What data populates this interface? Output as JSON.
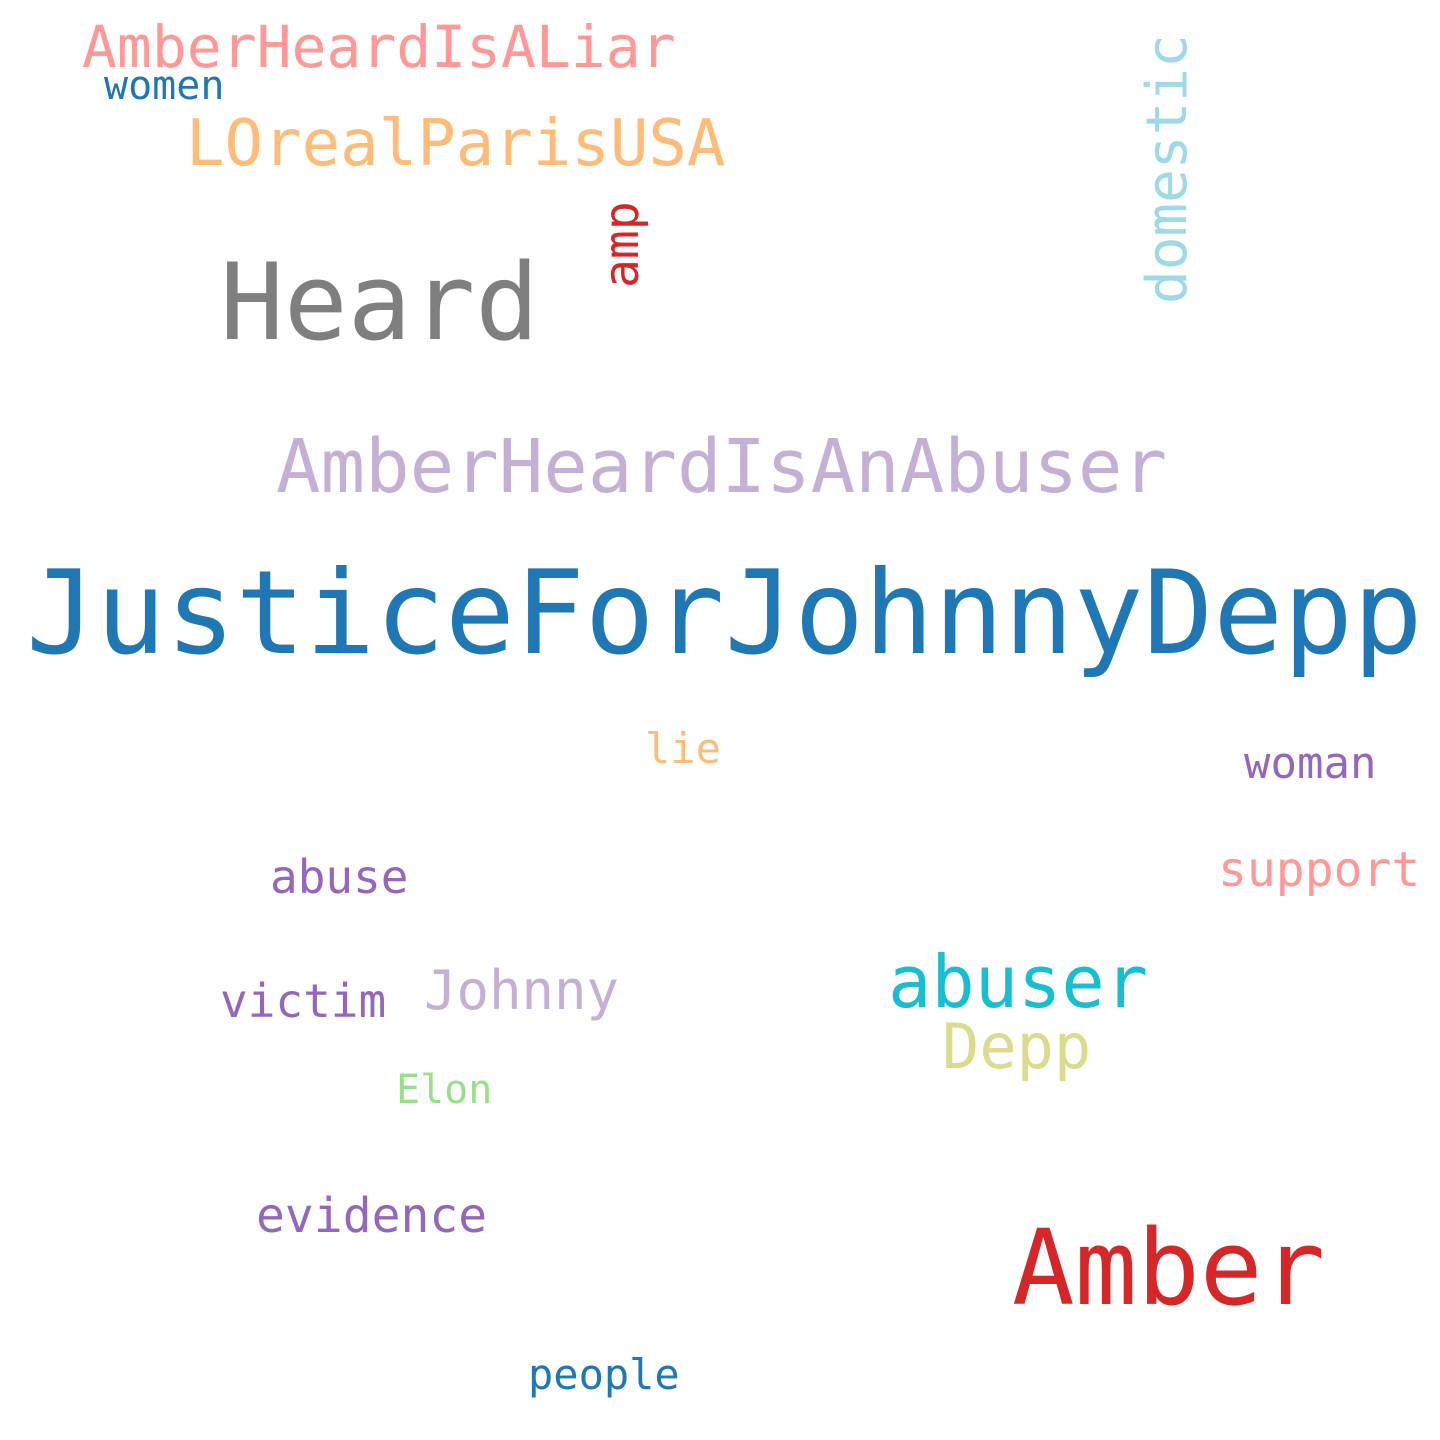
{
  "words": [
    {
      "id": "justicefor",
      "text": "JusticeForJohnnyDepp",
      "color": "#1f77b4"
    },
    {
      "id": "amberheardisanabuser",
      "text": "AmberHeardIsAnAbuser",
      "color": "#c5b0d5"
    },
    {
      "id": "heard",
      "text": "Heard",
      "color": "#7f7f7f"
    },
    {
      "id": "amber",
      "text": "Amber",
      "color": "#d62728"
    },
    {
      "id": "amberheardisaliar",
      "text": "AmberHeardIsALiar",
      "color": "#ff9896"
    },
    {
      "id": "lorealparisusa",
      "text": "LOrealParisUSA",
      "color": "#ffbb78"
    },
    {
      "id": "domestic",
      "text": "domestic",
      "color": "#9edae5"
    },
    {
      "id": "abuser",
      "text": "abuser",
      "color": "#17becf"
    },
    {
      "id": "depp",
      "text": "Depp",
      "color": "#dbdb8d"
    },
    {
      "id": "amp",
      "text": "amp",
      "color": "#d62728"
    },
    {
      "id": "women",
      "text": "women",
      "color": "#1f77b4"
    },
    {
      "id": "lie",
      "text": "lie",
      "color": "#ffbb78"
    },
    {
      "id": "woman",
      "text": "woman",
      "color": "#9467bd"
    },
    {
      "id": "support",
      "text": "support",
      "color": "#ff9896"
    },
    {
      "id": "abuse",
      "text": "abuse",
      "color": "#9467bd"
    },
    {
      "id": "victim",
      "text": "victim",
      "color": "#9467bd"
    },
    {
      "id": "johnny",
      "text": "Johnny",
      "color": "#c5b0d5"
    },
    {
      "id": "elon",
      "text": "Elon",
      "color": "#98df8a"
    },
    {
      "id": "evidence",
      "text": "evidence",
      "color": "#9467bd"
    },
    {
      "id": "people",
      "text": "people",
      "color": "#1f77b4"
    }
  ]
}
